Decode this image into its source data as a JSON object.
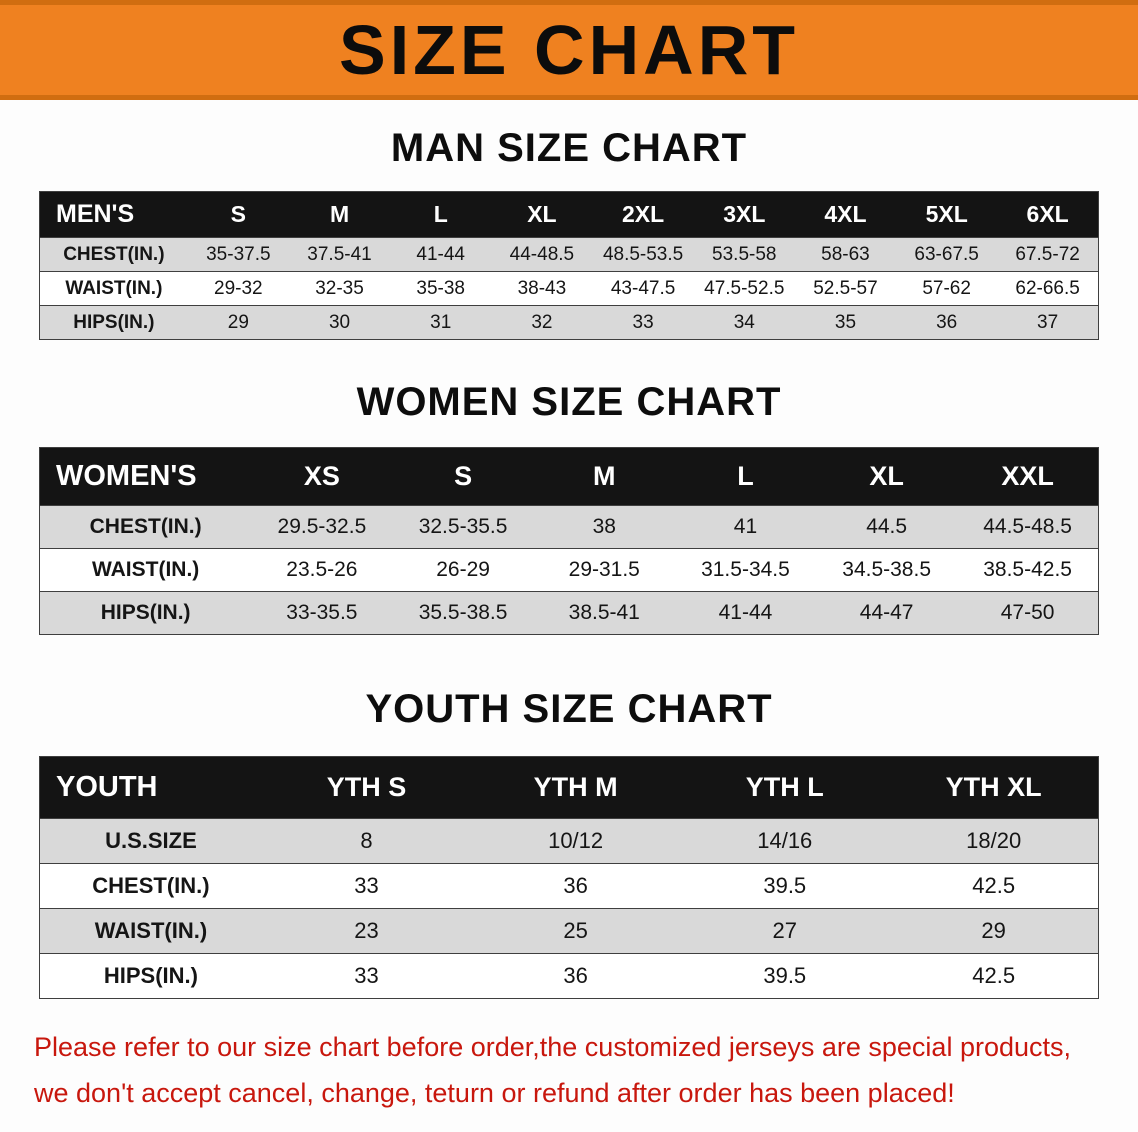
{
  "banner": {
    "title": "SIZE CHART"
  },
  "colors": {
    "banner_bg": "#ef8120",
    "banner_edge": "#d06d10",
    "header_bg": "#141414",
    "header_text": "#ffffff",
    "row_stripe": "#d9d9d9",
    "table_border": "#3f3f3f",
    "note_color": "#c8170d"
  },
  "men": {
    "heading": "MAN SIZE CHART",
    "columns": [
      "MEN'S",
      "S",
      "M",
      "L",
      "XL",
      "2XL",
      "3XL",
      "4XL",
      "5XL",
      "6XL"
    ],
    "rows": [
      [
        "CHEST(IN.)",
        "35-37.5",
        "37.5-41",
        "41-44",
        "44-48.5",
        "48.5-53.5",
        "53.5-58",
        "58-63",
        "63-67.5",
        "67.5-72"
      ],
      [
        "WAIST(IN.)",
        "29-32",
        "32-35",
        "35-38",
        "38-43",
        "43-47.5",
        "47.5-52.5",
        "52.5-57",
        "57-62",
        "62-66.5"
      ],
      [
        "HIPS(IN.)",
        "29",
        "30",
        "31",
        "32",
        "33",
        "34",
        "35",
        "36",
        "37"
      ]
    ]
  },
  "women": {
    "heading": "WOMEN SIZE CHART",
    "columns": [
      "WOMEN'S",
      "XS",
      "S",
      "M",
      "L",
      "XL",
      "XXL"
    ],
    "rows": [
      [
        "CHEST(IN.)",
        "29.5-32.5",
        "32.5-35.5",
        "38",
        "41",
        "44.5",
        "44.5-48.5"
      ],
      [
        "WAIST(IN.)",
        "23.5-26",
        "26-29",
        "29-31.5",
        "31.5-34.5",
        "34.5-38.5",
        "38.5-42.5"
      ],
      [
        "HIPS(IN.)",
        "33-35.5",
        "35.5-38.5",
        "38.5-41",
        "41-44",
        "44-47",
        "47-50"
      ]
    ]
  },
  "youth": {
    "heading": "YOUTH SIZE CHART",
    "columns": [
      "YOUTH",
      "YTH S",
      "YTH M",
      "YTH L",
      "YTH XL"
    ],
    "rows": [
      [
        "U.S.SIZE",
        "8",
        "10/12",
        "14/16",
        "18/20"
      ],
      [
        "CHEST(IN.)",
        "33",
        "36",
        "39.5",
        "42.5"
      ],
      [
        "WAIST(IN.)",
        "23",
        "25",
        "27",
        "29"
      ],
      [
        "HIPS(IN.)",
        "33",
        "36",
        "39.5",
        "42.5"
      ]
    ]
  },
  "note": {
    "line1": "Please refer to our size chart before order,the customized jerseys are special products,",
    "line2": "we don't accept cancel, change, teturn or refund after order has been placed!"
  }
}
